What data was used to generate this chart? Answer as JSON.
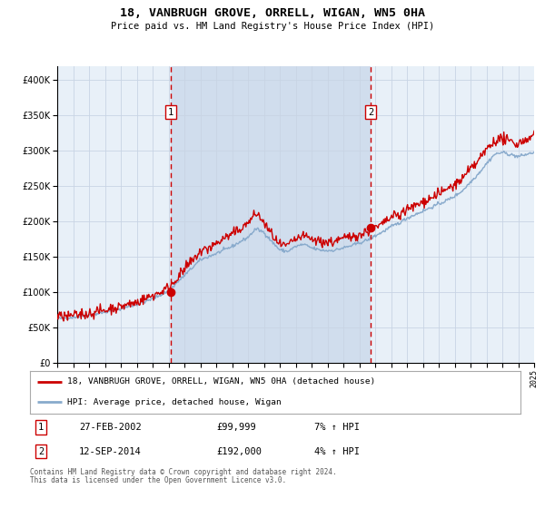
{
  "title": "18, VANBRUGH GROVE, ORRELL, WIGAN, WN5 0HA",
  "subtitle": "Price paid vs. HM Land Registry's House Price Index (HPI)",
  "x_start_year": 1995,
  "x_end_year": 2025,
  "ylim": [
    0,
    420000
  ],
  "yticks": [
    0,
    50000,
    100000,
    150000,
    200000,
    250000,
    300000,
    350000,
    400000
  ],
  "sale1_date": 2002.15,
  "sale1_price": 99999,
  "sale1_label": "27-FEB-2002",
  "sale1_text": "£99,999",
  "sale1_hpi": "7% ↑ HPI",
  "sale2_date": 2014.71,
  "sale2_price": 192000,
  "sale2_label": "12-SEP-2014",
  "sale2_text": "£192,000",
  "sale2_hpi": "4% ↑ HPI",
  "plot_bg": "#e8f0f8",
  "grid_color": "#c8d4e4",
  "red_line_color": "#cc0000",
  "blue_line_color": "#88aacc",
  "dashed_line_color": "#cc0000",
  "shade_color": "#ccdaec",
  "legend_line1": "18, VANBRUGH GROVE, ORRELL, WIGAN, WN5 0HA (detached house)",
  "legend_line2": "HPI: Average price, detached house, Wigan",
  "footer1": "Contains HM Land Registry data © Crown copyright and database right 2024.",
  "footer2": "This data is licensed under the Open Government Licence v3.0.",
  "sale_marker_color": "#cc0000",
  "box_edge_color": "#cc0000"
}
